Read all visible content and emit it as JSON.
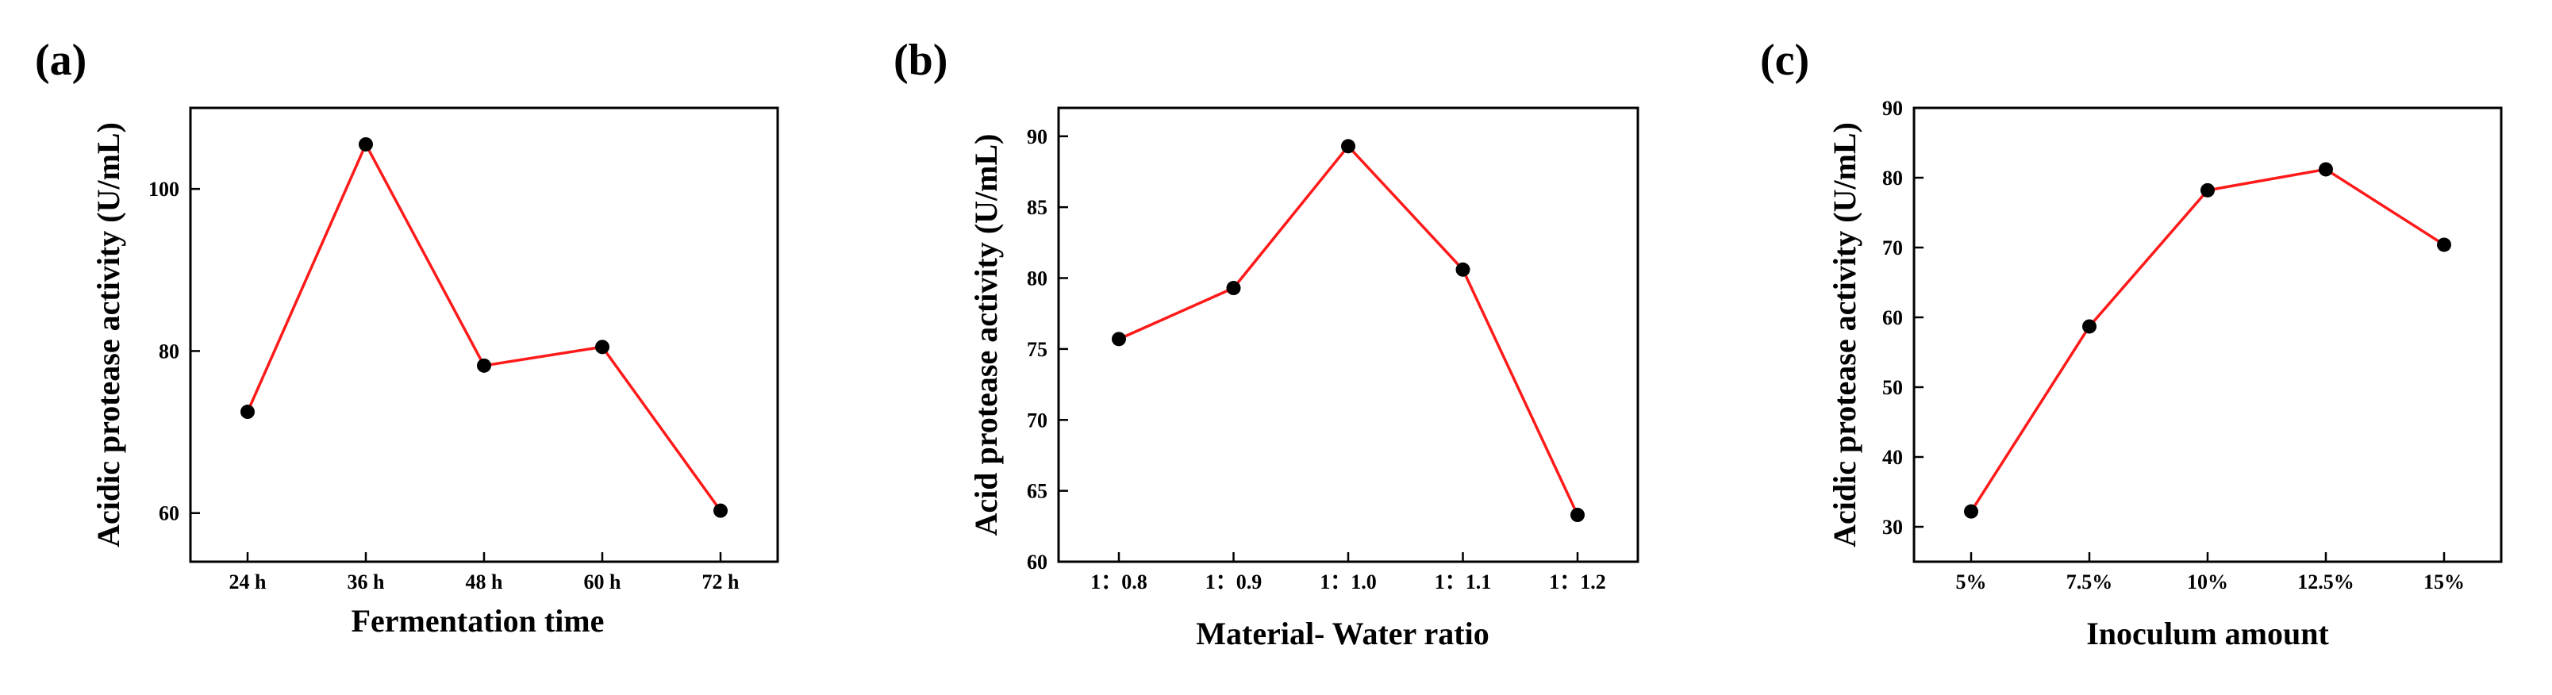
{
  "chart_data": [
    {
      "type": "line",
      "panel_label": "(a)",
      "categories": [
        "24 h",
        "36 h",
        "48 h",
        "60 h",
        "72 h"
      ],
      "values": [
        72.5,
        105.5,
        78.2,
        80.5,
        60.3
      ],
      "xlabel": "Fermentation time",
      "ylabel": "Acidic protease activity (U/mL)",
      "ylim": [
        54,
        110
      ],
      "yticks": [
        60,
        80,
        100
      ],
      "ytick_labels": [
        "60",
        "80",
        "100"
      ],
      "series_color": "#ff1a1a",
      "marker_color": "#000000"
    },
    {
      "type": "line",
      "panel_label": "(b)",
      "categories": [
        "1：0.8",
        "1：0.9",
        "1：1.0",
        "1：1.1",
        "1：1.2"
      ],
      "values": [
        75.7,
        79.3,
        89.3,
        80.6,
        63.3
      ],
      "xlabel": "Material- Water ratio",
      "ylabel": "Acid protease activity (U/mL)",
      "ylim": [
        60,
        92
      ],
      "yticks": [
        60,
        65,
        70,
        75,
        80,
        85,
        90
      ],
      "ytick_labels": [
        "60",
        "65",
        "70",
        "75",
        "80",
        "85",
        "90"
      ],
      "series_color": "#ff1a1a",
      "marker_color": "#000000"
    },
    {
      "type": "line",
      "panel_label": "(c)",
      "categories": [
        "5%",
        "7.5%",
        "10%",
        "12.5%",
        "15%"
      ],
      "values": [
        32.2,
        58.7,
        78.2,
        81.2,
        70.4
      ],
      "xlabel": "Inoculum amount",
      "ylabel": "Acidic protease activity (U/mL)",
      "ylim": [
        25,
        90
      ],
      "yticks": [
        30,
        40,
        50,
        60,
        70,
        80,
        90
      ],
      "ytick_labels": [
        "30",
        "40",
        "50",
        "60",
        "70",
        "80",
        "90"
      ],
      "series_color": "#ff1a1a",
      "marker_color": "#000000"
    }
  ]
}
